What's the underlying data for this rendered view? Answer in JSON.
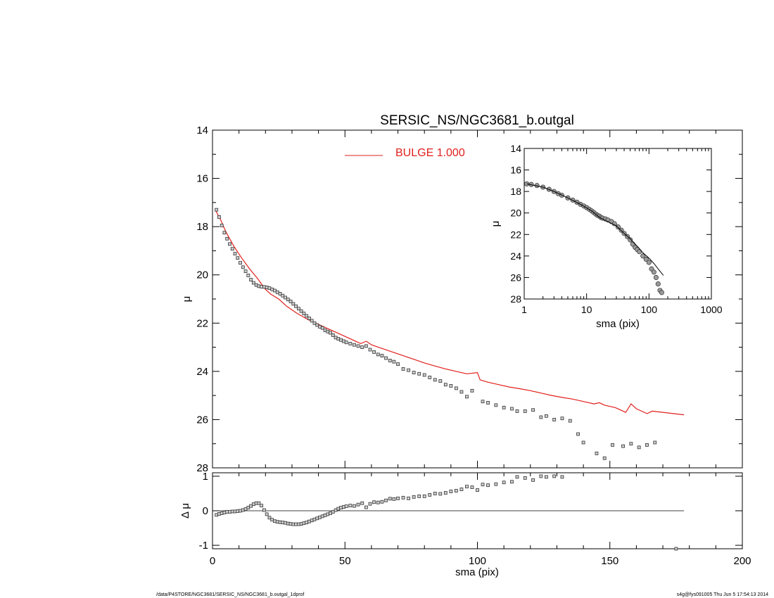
{
  "chart_data": {
    "type": "scatter",
    "title": "SERSIC_NS/NGC3681_b.outgal",
    "main": {
      "xlim": [
        0,
        200
      ],
      "ylim": [
        28,
        14
      ],
      "ylabel": "μ",
      "yticks": [
        14,
        16,
        18,
        20,
        22,
        24,
        26,
        28
      ],
      "yticklabels": [
        "14",
        "16",
        "18",
        "20",
        "22",
        "24",
        "26",
        "28"
      ],
      "legend": {
        "placement": "top-center",
        "entries": [
          {
            "name": "BULGE  1.000",
            "color": "#e0201c"
          }
        ]
      },
      "data_markers": [
        [
          1.5,
          17.3
        ],
        [
          2.5,
          17.6
        ],
        [
          3.5,
          17.95
        ],
        [
          4.5,
          18.25
        ],
        [
          5.5,
          18.5
        ],
        [
          6.5,
          18.72
        ],
        [
          7.5,
          18.92
        ],
        [
          8.5,
          19.12
        ],
        [
          9.5,
          19.3
        ],
        [
          10.5,
          19.5
        ],
        [
          11.5,
          19.68
        ],
        [
          12.5,
          19.85
        ],
        [
          13.5,
          20.02
        ],
        [
          14.5,
          20.2
        ],
        [
          15.5,
          20.33
        ],
        [
          16.5,
          20.42
        ],
        [
          17.5,
          20.47
        ],
        [
          18.5,
          20.49
        ],
        [
          19.5,
          20.5
        ],
        [
          20.5,
          20.52
        ],
        [
          21.5,
          20.55
        ],
        [
          22.5,
          20.6
        ],
        [
          23.5,
          20.65
        ],
        [
          24.5,
          20.72
        ],
        [
          25.5,
          20.78
        ],
        [
          26.5,
          20.86
        ],
        [
          27.5,
          20.94
        ],
        [
          28.5,
          21.02
        ],
        [
          29.5,
          21.1
        ],
        [
          30.5,
          21.2
        ],
        [
          31.5,
          21.3
        ],
        [
          32.5,
          21.4
        ],
        [
          33.5,
          21.5
        ],
        [
          34.5,
          21.6
        ],
        [
          35.5,
          21.7
        ],
        [
          36.5,
          21.8
        ],
        [
          37.5,
          21.9
        ],
        [
          38.5,
          22.0
        ],
        [
          39.5,
          22.08
        ],
        [
          40.5,
          22.15
        ],
        [
          41.5,
          22.2
        ],
        [
          42.5,
          22.3
        ],
        [
          43.5,
          22.35
        ],
        [
          44.5,
          22.4
        ],
        [
          45.5,
          22.5
        ],
        [
          46.5,
          22.6
        ],
        [
          47.5,
          22.65
        ],
        [
          48.5,
          22.7
        ],
        [
          49.5,
          22.75
        ],
        [
          50.5,
          22.8
        ],
        [
          52,
          22.85
        ],
        [
          53.5,
          22.9
        ],
        [
          55,
          22.95
        ],
        [
          56.5,
          23.0
        ],
        [
          58,
          22.95
        ],
        [
          59.5,
          23.1
        ],
        [
          61,
          23.2
        ],
        [
          62.5,
          23.3
        ],
        [
          64,
          23.35
        ],
        [
          65.5,
          23.45
        ],
        [
          67,
          23.55
        ],
        [
          68.5,
          23.6
        ],
        [
          70,
          23.7
        ],
        [
          72,
          23.9
        ],
        [
          74,
          23.95
        ],
        [
          76,
          24.05
        ],
        [
          78,
          24.1
        ],
        [
          80,
          24.15
        ],
        [
          82,
          24.25
        ],
        [
          84,
          24.35
        ],
        [
          86,
          24.4
        ],
        [
          88,
          24.55
        ],
        [
          90,
          24.6
        ],
        [
          92,
          24.7
        ],
        [
          94,
          24.85
        ],
        [
          96,
          25.05
        ],
        [
          98,
          24.8
        ],
        [
          102,
          25.25
        ],
        [
          104,
          25.3
        ],
        [
          107,
          25.4
        ],
        [
          110,
          25.5
        ],
        [
          113,
          25.55
        ],
        [
          115,
          25.65
        ],
        [
          118,
          25.65
        ],
        [
          121,
          25.6
        ],
        [
          124,
          25.9
        ],
        [
          126,
          25.85
        ],
        [
          129,
          26.0
        ],
        [
          132,
          25.95
        ],
        [
          135,
          26.05
        ],
        [
          138,
          26.6
        ],
        [
          140,
          26.95
        ],
        [
          145,
          27.4
        ],
        [
          148,
          27.6
        ],
        [
          151,
          27.05
        ],
        [
          155,
          27.1
        ],
        [
          158,
          27.0
        ],
        [
          161,
          27.15
        ],
        [
          164,
          27.05
        ],
        [
          167,
          26.95
        ]
      ],
      "model_line": [
        [
          1,
          17.3
        ],
        [
          3,
          17.7
        ],
        [
          5,
          18.2
        ],
        [
          8,
          18.8
        ],
        [
          11,
          19.3
        ],
        [
          14,
          19.75
        ],
        [
          17,
          20.15
        ],
        [
          20,
          20.6
        ],
        [
          22,
          20.8
        ],
        [
          25,
          21.0
        ],
        [
          28,
          21.3
        ],
        [
          32,
          21.6
        ],
        [
          36,
          21.85
        ],
        [
          40,
          22.05
        ],
        [
          44,
          22.25
        ],
        [
          48,
          22.45
        ],
        [
          52,
          22.65
        ],
        [
          56,
          22.85
        ],
        [
          58,
          22.75
        ],
        [
          60,
          22.9
        ],
        [
          64,
          23.05
        ],
        [
          68,
          23.2
        ],
        [
          72,
          23.35
        ],
        [
          76,
          23.5
        ],
        [
          80,
          23.65
        ],
        [
          84,
          23.78
        ],
        [
          88,
          23.9
        ],
        [
          92,
          24.0
        ],
        [
          96,
          24.1
        ],
        [
          100,
          24.05
        ],
        [
          101,
          24.35
        ],
        [
          104,
          24.45
        ],
        [
          108,
          24.55
        ],
        [
          112,
          24.65
        ],
        [
          116,
          24.72
        ],
        [
          120,
          24.8
        ],
        [
          124,
          24.9
        ],
        [
          128,
          25.0
        ],
        [
          132,
          25.08
        ],
        [
          136,
          25.15
        ],
        [
          140,
          25.25
        ],
        [
          144,
          25.35
        ],
        [
          146,
          25.3
        ],
        [
          148,
          25.4
        ],
        [
          152,
          25.5
        ],
        [
          156,
          25.7
        ],
        [
          158,
          25.35
        ],
        [
          160,
          25.55
        ],
        [
          164,
          25.75
        ],
        [
          166,
          25.65
        ],
        [
          170,
          25.7
        ],
        [
          174,
          25.75
        ],
        [
          178,
          25.8
        ]
      ]
    },
    "inset": {
      "xscale": "log",
      "xlim": [
        1,
        1000
      ],
      "ylim": [
        28,
        14
      ],
      "xlabel": "sma (pix)",
      "ylabel": "μ",
      "xticks": [
        1,
        10,
        100,
        1000
      ],
      "xticklabels": [
        "1",
        "10",
        "100",
        "1000"
      ],
      "yticks": [
        14,
        16,
        18,
        20,
        22,
        24,
        26,
        28
      ],
      "yticklabels": [
        "14",
        "16",
        "18",
        "20",
        "22",
        "24",
        "26",
        "28"
      ],
      "data_markers": [
        [
          1.1,
          17.3
        ],
        [
          1.3,
          17.35
        ],
        [
          1.6,
          17.45
        ],
        [
          2,
          17.6
        ],
        [
          2.5,
          17.8
        ],
        [
          3,
          18.0
        ],
        [
          3.5,
          18.2
        ],
        [
          4,
          18.35
        ],
        [
          5,
          18.6
        ],
        [
          6,
          18.8
        ],
        [
          7,
          19.0
        ],
        [
          8,
          19.2
        ],
        [
          9,
          19.35
        ],
        [
          10,
          19.5
        ],
        [
          11,
          19.65
        ],
        [
          12,
          19.8
        ],
        [
          13,
          19.95
        ],
        [
          14,
          20.1
        ],
        [
          15,
          20.22
        ],
        [
          16,
          20.3
        ],
        [
          17,
          20.42
        ],
        [
          18,
          20.48
        ],
        [
          20,
          20.55
        ],
        [
          22,
          20.65
        ],
        [
          25,
          20.8
        ],
        [
          28,
          21.0
        ],
        [
          32,
          21.3
        ],
        [
          36,
          21.6
        ],
        [
          40,
          21.9
        ],
        [
          45,
          22.2
        ],
        [
          50,
          22.5
        ],
        [
          55,
          22.9
        ],
        [
          60,
          23.2
        ],
        [
          65,
          23.4
        ],
        [
          70,
          23.6
        ],
        [
          80,
          24.0
        ],
        [
          90,
          24.3
        ],
        [
          100,
          24.6
        ],
        [
          110,
          25.2
        ],
        [
          120,
          25.5
        ],
        [
          130,
          26.0
        ],
        [
          140,
          26.6
        ],
        [
          150,
          27.2
        ],
        [
          160,
          27.4
        ]
      ],
      "model_line": [
        [
          1.1,
          17.3
        ],
        [
          2,
          17.6
        ],
        [
          3,
          18.0
        ],
        [
          5,
          18.6
        ],
        [
          8,
          19.2
        ],
        [
          12,
          19.8
        ],
        [
          16,
          20.4
        ],
        [
          20,
          20.7
        ],
        [
          30,
          21.2
        ],
        [
          40,
          21.9
        ],
        [
          50,
          22.4
        ],
        [
          60,
          22.9
        ],
        [
          70,
          23.3
        ],
        [
          80,
          23.7
        ],
        [
          100,
          24.2
        ],
        [
          120,
          24.7
        ],
        [
          140,
          25.2
        ],
        [
          170,
          25.8
        ]
      ]
    },
    "residual": {
      "xlim": [
        0,
        200
      ],
      "ylim": [
        -1.1,
        1.1
      ],
      "xlabel": "sma (pix)",
      "ylabel": "Δ μ",
      "xticks": [
        0,
        50,
        100,
        150,
        200
      ],
      "xticklabels": [
        "0",
        "50",
        "100",
        "150",
        "200"
      ],
      "yticks": [
        -1,
        0,
        1
      ],
      "yticklabels": [
        "-1",
        "0",
        "1"
      ],
      "zero_line": [
        0,
        178
      ],
      "data_markers": [
        [
          1.5,
          -0.12
        ],
        [
          2.5,
          -0.09
        ],
        [
          3.5,
          -0.07
        ],
        [
          4.5,
          -0.05
        ],
        [
          5.5,
          -0.03
        ],
        [
          6.5,
          -0.03
        ],
        [
          7.5,
          -0.02
        ],
        [
          8.5,
          -0.02
        ],
        [
          9.5,
          -0.01
        ],
        [
          10.5,
          0.0
        ],
        [
          11.5,
          0.02
        ],
        [
          12.5,
          0.05
        ],
        [
          13.5,
          0.09
        ],
        [
          14.5,
          0.14
        ],
        [
          15.5,
          0.19
        ],
        [
          16.5,
          0.22
        ],
        [
          17.5,
          0.22
        ],
        [
          18.5,
          0.15
        ],
        [
          19.5,
          0.02
        ],
        [
          20.5,
          -0.1
        ],
        [
          21.5,
          -0.2
        ],
        [
          22.5,
          -0.26
        ],
        [
          23.5,
          -0.3
        ],
        [
          24.5,
          -0.32
        ],
        [
          25.5,
          -0.33
        ],
        [
          26.5,
          -0.34
        ],
        [
          27.5,
          -0.35
        ],
        [
          28.5,
          -0.37
        ],
        [
          29.5,
          -0.38
        ],
        [
          30.5,
          -0.39
        ],
        [
          31.5,
          -0.39
        ],
        [
          32.5,
          -0.39
        ],
        [
          33.5,
          -0.38
        ],
        [
          34.5,
          -0.36
        ],
        [
          35.5,
          -0.34
        ],
        [
          36.5,
          -0.31
        ],
        [
          37.5,
          -0.28
        ],
        [
          38.5,
          -0.25
        ],
        [
          39.5,
          -0.22
        ],
        [
          40.5,
          -0.19
        ],
        [
          41.5,
          -0.16
        ],
        [
          42.5,
          -0.13
        ],
        [
          43.5,
          -0.1
        ],
        [
          44.5,
          -0.07
        ],
        [
          45.5,
          -0.03
        ],
        [
          46.5,
          0.02
        ],
        [
          47.5,
          0.06
        ],
        [
          48.5,
          0.09
        ],
        [
          49.5,
          0.11
        ],
        [
          50.5,
          0.13
        ],
        [
          52,
          0.15
        ],
        [
          53.5,
          0.14
        ],
        [
          55,
          0.18
        ],
        [
          56.5,
          0.22
        ],
        [
          58,
          0.1
        ],
        [
          59.5,
          0.2
        ],
        [
          61,
          0.25
        ],
        [
          62.5,
          0.24
        ],
        [
          64,
          0.26
        ],
        [
          65.5,
          0.3
        ],
        [
          67,
          0.35
        ],
        [
          68.5,
          0.34
        ],
        [
          70,
          0.36
        ],
        [
          72,
          0.38
        ],
        [
          74,
          0.36
        ],
        [
          76,
          0.4
        ],
        [
          78,
          0.42
        ],
        [
          80,
          0.42
        ],
        [
          82,
          0.46
        ],
        [
          84,
          0.5
        ],
        [
          86,
          0.49
        ],
        [
          88,
          0.52
        ],
        [
          90,
          0.56
        ],
        [
          92,
          0.58
        ],
        [
          94,
          0.62
        ],
        [
          96,
          0.7
        ],
        [
          98,
          0.68
        ],
        [
          100,
          0.6
        ],
        [
          102,
          0.76
        ],
        [
          104,
          0.74
        ],
        [
          107,
          0.77
        ],
        [
          110,
          0.82
        ],
        [
          113,
          0.84
        ],
        [
          115,
          0.98
        ],
        [
          118,
          0.95
        ],
        [
          121,
          0.89
        ],
        [
          124,
          1.0
        ],
        [
          126,
          0.98
        ],
        [
          129,
          1.0
        ],
        [
          132,
          0.98
        ],
        [
          175,
          -1.1
        ]
      ]
    }
  },
  "footer": {
    "left": "/data/P4STORE/NGC3681/SERSIC_NS/NGC3681_b.outgal_1dprof",
    "right": "s4g@fys091005  Thu Jun  5 17:54:13 2014"
  }
}
